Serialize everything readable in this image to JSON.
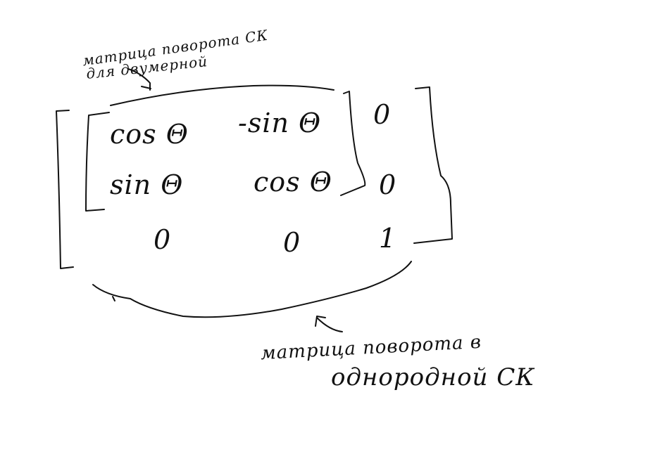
{
  "annotations": {
    "top_line1": "матрица поворота СК",
    "top_line2": "для двумерной",
    "bottom_line1": "матрица поворота в",
    "bottom_line2": "однородной СК"
  },
  "matrix": {
    "rows": [
      [
        "cos Θ",
        "-sin Θ",
        "0"
      ],
      [
        "sin Θ",
        "cos Θ",
        "0"
      ],
      [
        "0",
        "0",
        "1"
      ]
    ]
  }
}
